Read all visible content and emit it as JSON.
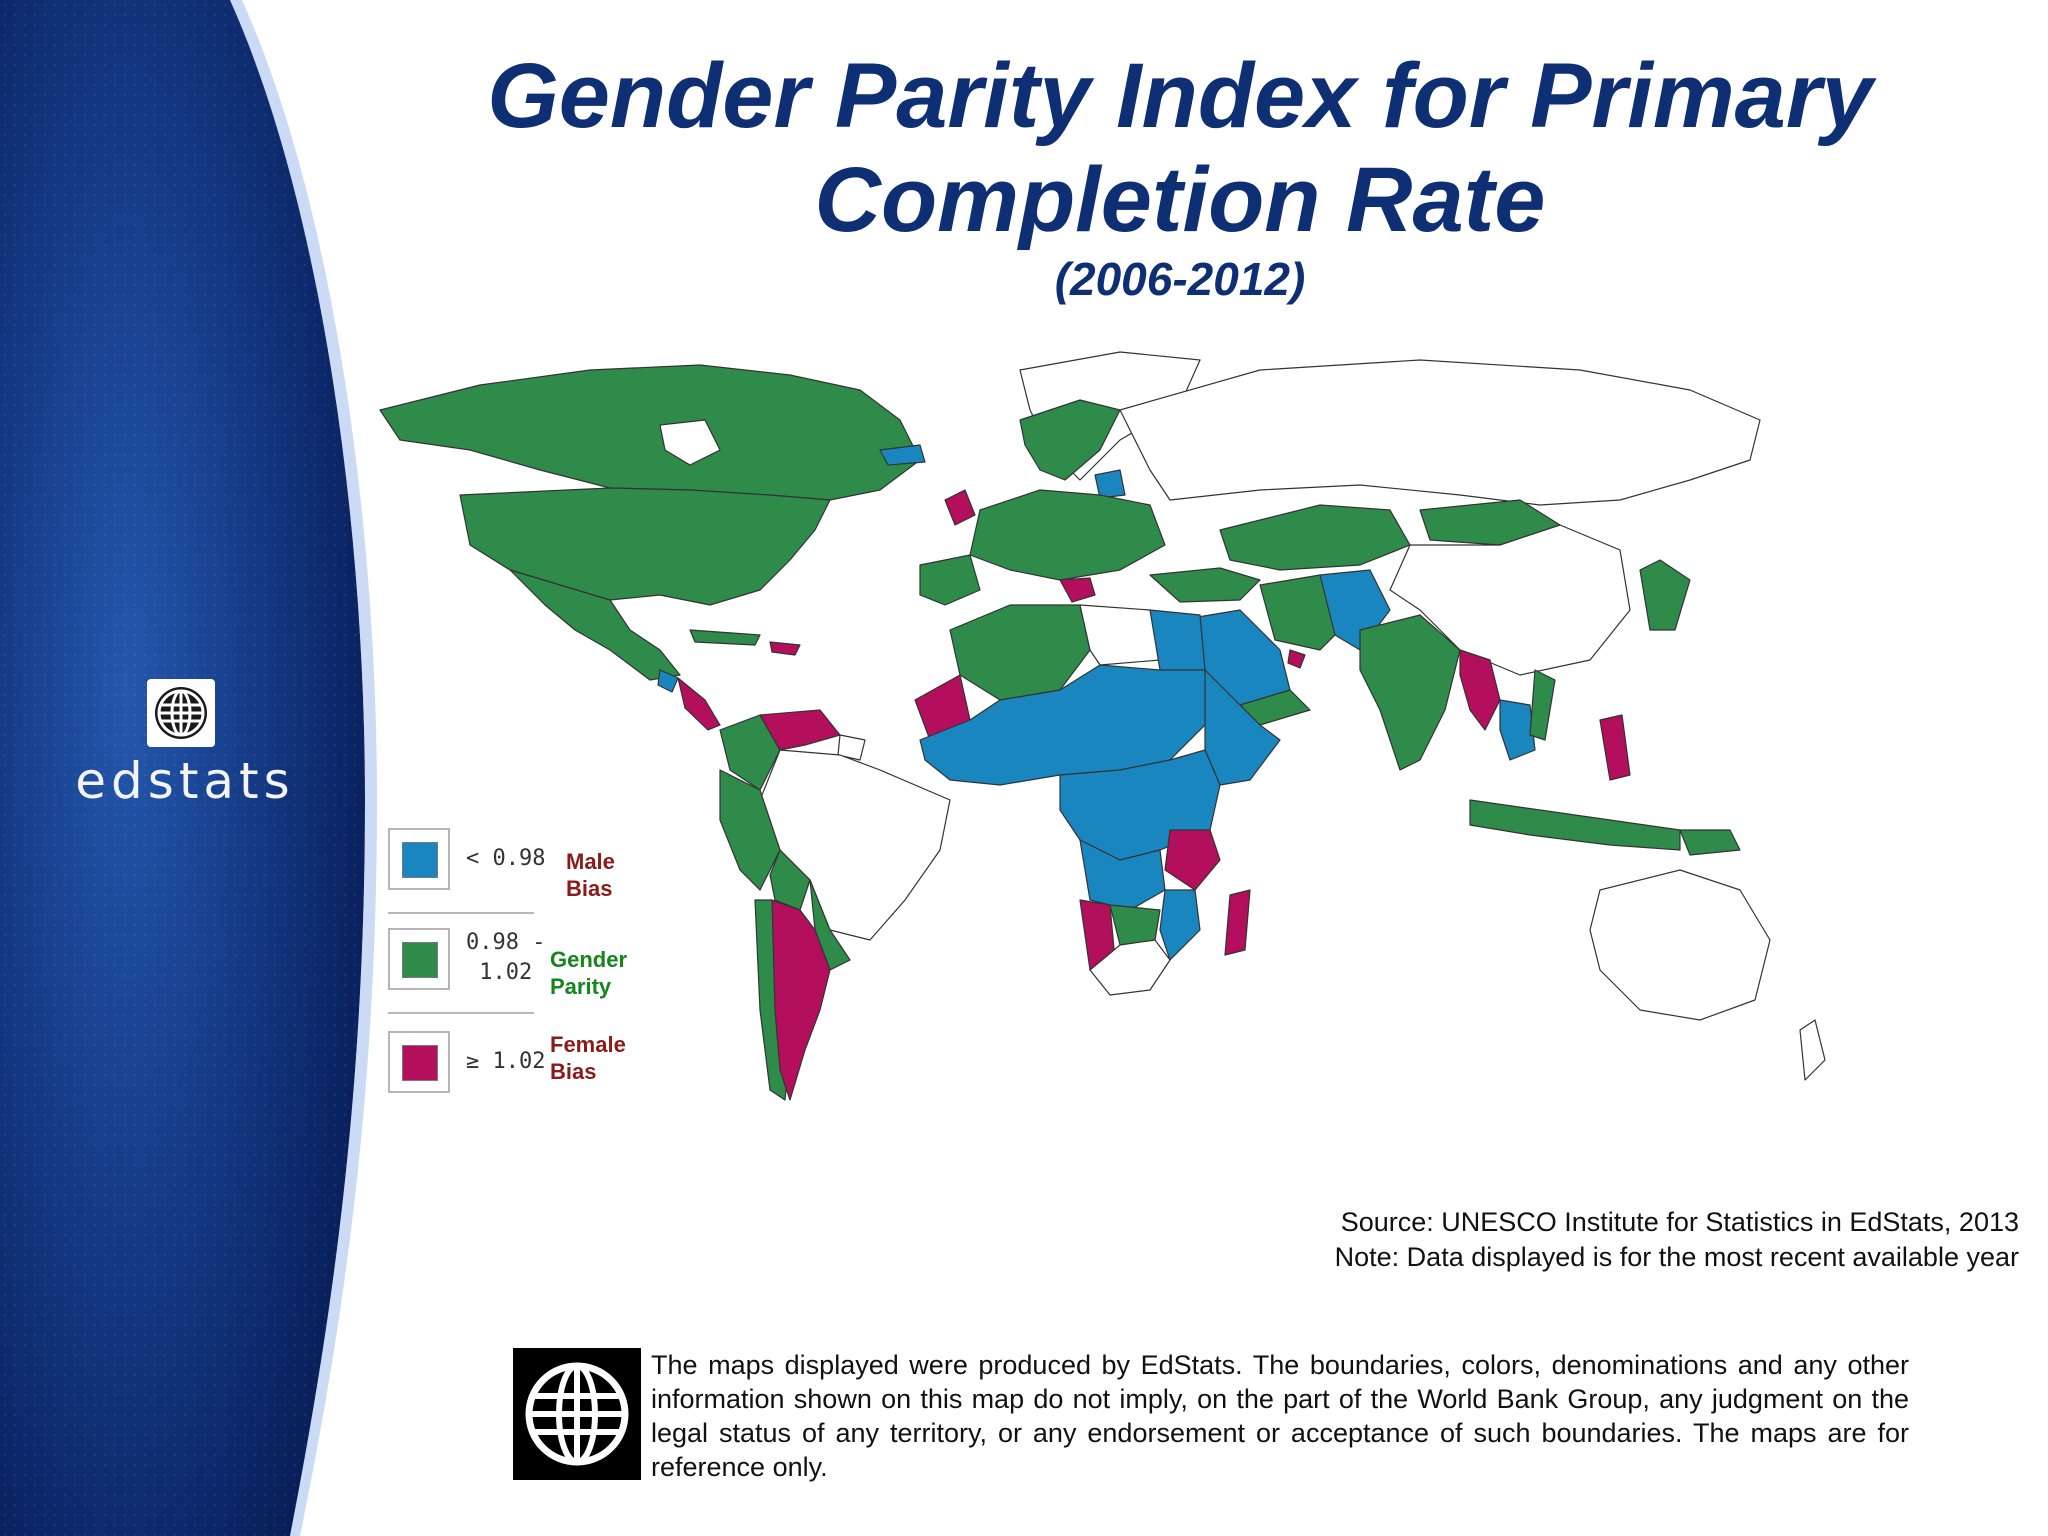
{
  "title": "Gender Parity Index for Primary Completion Rate",
  "subtitle": "(2006-2012)",
  "brand": {
    "wordmark": "edstats",
    "logo_icon": "globe-icon"
  },
  "legend": [
    {
      "range": "< 0.98",
      "label_line1": "Male",
      "label_line2": "Bias",
      "color": "#1a86c0",
      "label_color": "#8b1b1b"
    },
    {
      "range_line1": "0.98 -",
      "range_line2": "1.02",
      "label_line1": "Gender",
      "label_line2": "Parity",
      "color": "#2e8b4a",
      "label_color": "#15851c"
    },
    {
      "range": "≥ 1.02",
      "label_line1": "Female",
      "label_line2": "Bias",
      "color": "#b30f5c",
      "label_color": "#8b1b1b"
    }
  ],
  "colors": {
    "sidebar_dark": "#061a52",
    "sidebar_mid": "#1c4fa8",
    "title": "#0e2f73",
    "no_data": "#ffffff",
    "border": "#333333"
  },
  "source": {
    "line1": "Source: UNESCO Institute for Statistics in EdStats, 2013",
    "line2": "Note: Data displayed is for the most recent available year"
  },
  "disclaimer": "The maps displayed were produced by EdStats. The boundaries, colors, denominations and any other information shown on this map do not imply, on the part of the World Bank Group, any judgment on the legal status of any territory, or any endorsement or acceptance of such boundaries. The maps are for reference only.",
  "disclaimer_icon": "world-bank-globe-icon"
}
